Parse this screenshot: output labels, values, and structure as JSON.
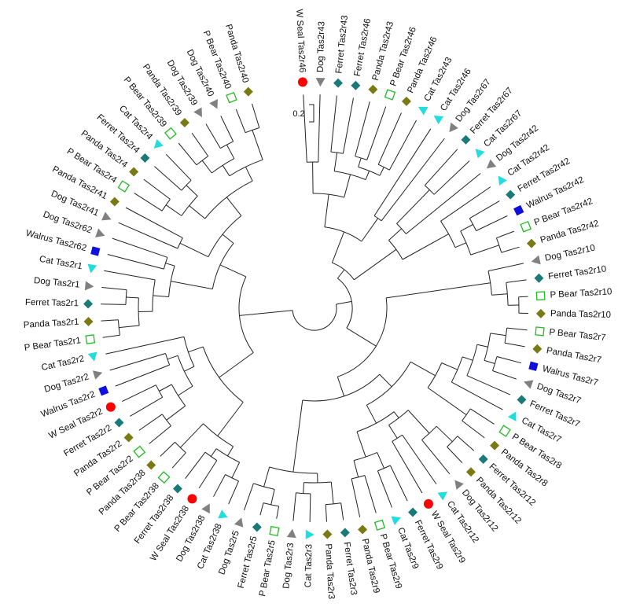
{
  "scale_bar": {
    "label": "0.2"
  },
  "species_markers": {
    "W Seal": {
      "shape": "circle",
      "color": "#ff0000"
    },
    "Dog": {
      "shape": "triangle-down",
      "color": "#808080"
    },
    "Ferret": {
      "shape": "diamond",
      "color": "#1a7a78"
    },
    "Panda": {
      "shape": "diamond",
      "color": "#7a7a14"
    },
    "P Bear": {
      "shape": "square-open",
      "color": "#22bb22"
    },
    "Cat": {
      "shape": "triangle-left",
      "color": "#22dddd"
    },
    "Walrus": {
      "shape": "square",
      "color": "#1010dd"
    }
  },
  "leaves": [
    {
      "label": "W Seal Tas2r46",
      "species": "W Seal"
    },
    {
      "label": "Dog Tas2r43",
      "species": "Dog"
    },
    {
      "label": "Ferret Tas2r43",
      "species": "Ferret"
    },
    {
      "label": "Ferret Tas2r46",
      "species": "Ferret"
    },
    {
      "label": "Panda Tas2r43",
      "species": "Panda"
    },
    {
      "label": "P Bear Tas2r46",
      "species": "P Bear"
    },
    {
      "label": "Panda Tas2r46",
      "species": "Panda"
    },
    {
      "label": "Cat Tas2r43",
      "species": "Cat"
    },
    {
      "label": "Cat Tas2r46",
      "species": "Cat"
    },
    {
      "label": "Dog Tas2r67",
      "species": "Dog"
    },
    {
      "label": "Ferret Tas2r67",
      "species": "Ferret"
    },
    {
      "label": "Cat Tas2r67",
      "species": "Cat"
    },
    {
      "label": "Dog Tas2r42",
      "species": "Dog"
    },
    {
      "label": "Cat Tas2r42",
      "species": "Cat"
    },
    {
      "label": "Ferret Tas2r42",
      "species": "Ferret"
    },
    {
      "label": "Walrus Tas2r42",
      "species": "Walrus"
    },
    {
      "label": "P Bear Tas2r42",
      "species": "P Bear"
    },
    {
      "label": "Panda Tas2r42",
      "species": "Panda"
    },
    {
      "label": "Dog Tas2r10",
      "species": "Dog"
    },
    {
      "label": "Ferret Tas2r10",
      "species": "Ferret"
    },
    {
      "label": "P Bear Tas2r10",
      "species": "P Bear"
    },
    {
      "label": "Panda Tas2r10",
      "species": "Panda"
    },
    {
      "label": "P Bear Tas2r7",
      "species": "P Bear"
    },
    {
      "label": "Panda Tas2r7",
      "species": "Panda"
    },
    {
      "label": "Walrus Tas2r7",
      "species": "Walrus"
    },
    {
      "label": "Dog Tas2r7",
      "species": "Dog"
    },
    {
      "label": "Ferret Tas2r7",
      "species": "Ferret"
    },
    {
      "label": "Cat Tas2r7",
      "species": "Cat"
    },
    {
      "label": "P Bear Tas2r8",
      "species": "P Bear"
    },
    {
      "label": "Panda Tas2r8",
      "species": "Panda"
    },
    {
      "label": "Ferret Tas2r12",
      "species": "Ferret"
    },
    {
      "label": "Panda Tas2r12",
      "species": "Panda"
    },
    {
      "label": "Dog Tas2r12",
      "species": "Dog"
    },
    {
      "label": "Cat Tas2r12",
      "species": "Cat"
    },
    {
      "label": "W Seal Tas2r9",
      "species": "W Seal"
    },
    {
      "label": "Ferret Tas2r9",
      "species": "Ferret"
    },
    {
      "label": "Cat Tas2r9",
      "species": "Cat"
    },
    {
      "label": "P Bear Tas2r9",
      "species": "P Bear"
    },
    {
      "label": "Panda Tas2r9",
      "species": "Panda"
    },
    {
      "label": "Ferret Tas2r3",
      "species": "Ferret"
    },
    {
      "label": "Panda Tas2r3",
      "species": "Panda"
    },
    {
      "label": "Cat Tas2r3",
      "species": "Cat"
    },
    {
      "label": "Dog Tas2r3",
      "species": "Dog"
    },
    {
      "label": "P Bear Tas2r5",
      "species": "P Bear"
    },
    {
      "label": "Ferret Tas2r5",
      "species": "Ferret"
    },
    {
      "label": "Dog Tas2r5",
      "species": "Dog"
    },
    {
      "label": "Cat Tas2r38",
      "species": "Cat"
    },
    {
      "label": "Dog Tas2r38",
      "species": "Dog"
    },
    {
      "label": "W Seal Tas2r38",
      "species": "W Seal"
    },
    {
      "label": "Ferret Tas2r38",
      "species": "Ferret"
    },
    {
      "label": "P Bear Tas2r38",
      "species": "P Bear"
    },
    {
      "label": "Panda Tas2r38",
      "species": "Panda"
    },
    {
      "label": "P Bear Tas2r2",
      "species": "P Bear"
    },
    {
      "label": "Panda Tas2r2",
      "species": "Panda"
    },
    {
      "label": "Ferret Tas2r2",
      "species": "Ferret"
    },
    {
      "label": "W Seal Tas2r2",
      "species": "W Seal"
    },
    {
      "label": "Walrus Tas2r2",
      "species": "Walrus"
    },
    {
      "label": "Dog Tas2r2",
      "species": "Dog"
    },
    {
      "label": "Cat Tas2r2",
      "species": "Cat"
    },
    {
      "label": "P Bear Tas2r1",
      "species": "P Bear"
    },
    {
      "label": "Panda Tas2r1",
      "species": "Panda"
    },
    {
      "label": "Ferret Tas2r1",
      "species": "Ferret"
    },
    {
      "label": "Dog Tas2r1",
      "species": "Dog"
    },
    {
      "label": "Cat Tas2r1",
      "species": "Cat"
    },
    {
      "label": "Walrus Tas2r62",
      "species": "Walrus"
    },
    {
      "label": "Dog Tas2r62",
      "species": "Dog"
    },
    {
      "label": "Dog Tas2r41",
      "species": "Dog"
    },
    {
      "label": "Panda Tas2r41",
      "species": "Panda"
    },
    {
      "label": "P Bear Tas2r4",
      "species": "P Bear"
    },
    {
      "label": "Panda Tas2r4",
      "species": "Panda"
    },
    {
      "label": "Ferret Tas2r4",
      "species": "Ferret"
    },
    {
      "label": "Cat Tas2r4",
      "species": "Cat"
    },
    {
      "label": "P Bear Tas2r39",
      "species": "P Bear"
    },
    {
      "label": "Panda Tas2r39",
      "species": "Panda"
    },
    {
      "label": "Dog Tas2r39",
      "species": "Dog"
    },
    {
      "label": "Dog Tas2r40",
      "species": "Dog"
    },
    {
      "label": "P Bear Tas2r40",
      "species": "P Bear"
    },
    {
      "label": "Panda Tas2r40",
      "species": "Panda"
    }
  ]
}
